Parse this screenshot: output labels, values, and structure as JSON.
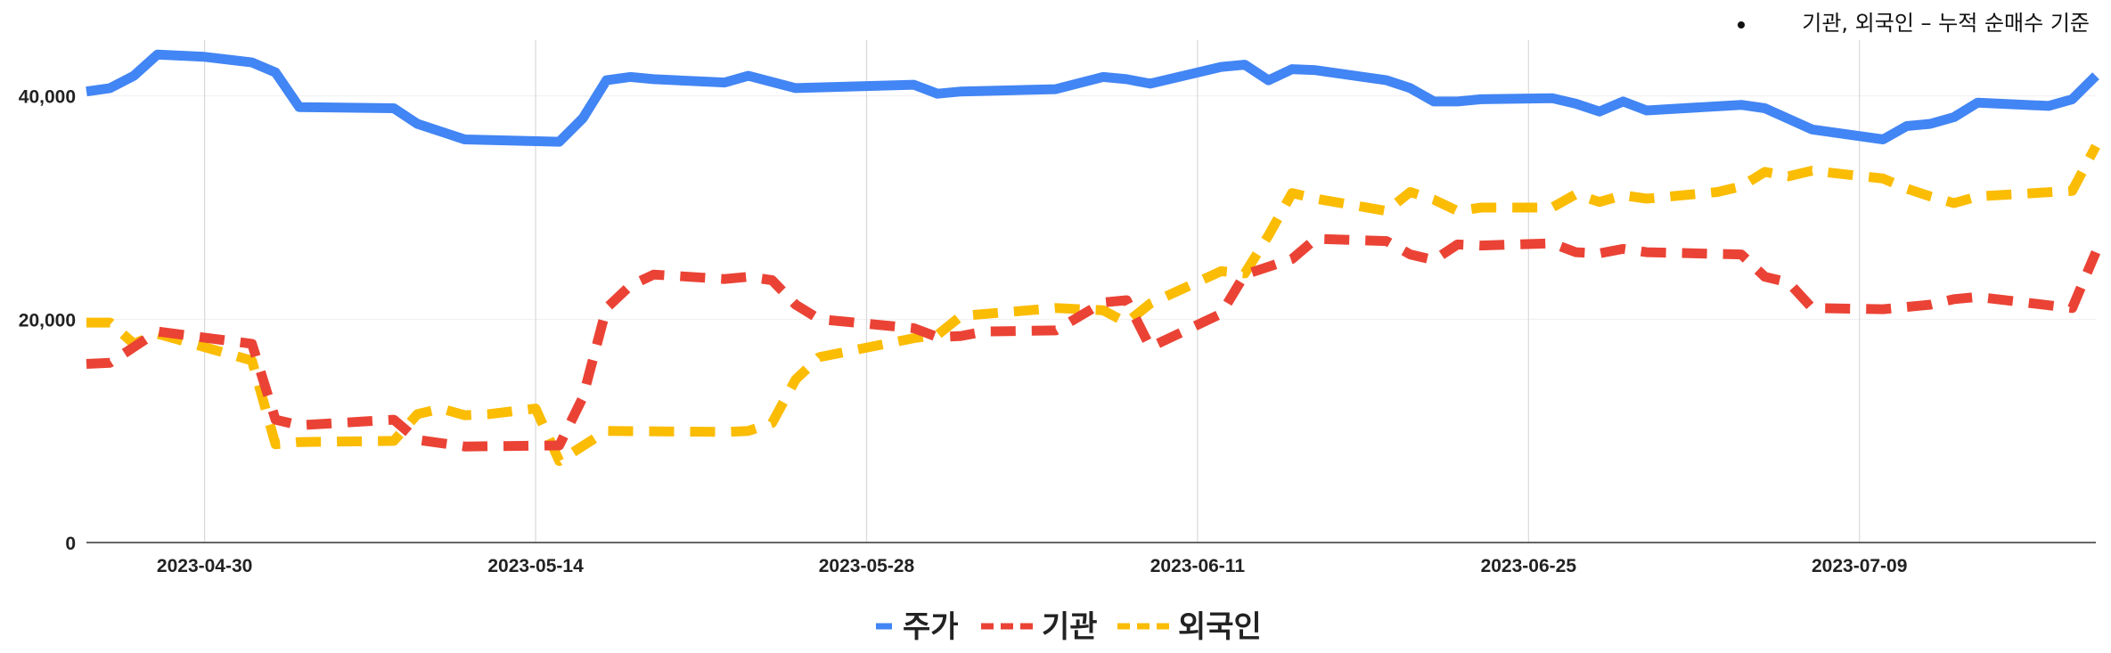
{
  "chart_data": {
    "type": "line",
    "title": "",
    "note": "기관, 외국인 – 누적 순매수 기준",
    "xlabel": "",
    "ylabel": "",
    "ylim": [
      0,
      45000
    ],
    "yticks": [
      0,
      20000,
      40000
    ],
    "ytick_labels": [
      "0",
      "20,000",
      "40,000"
    ],
    "xticks": [
      "2023-04-30",
      "2023-05-14",
      "2023-05-28",
      "2023-06-11",
      "2023-06-25",
      "2023-07-09"
    ],
    "x_start": "2023-04-25",
    "x_end": "2023-07-19",
    "grid": "vertical",
    "legend_position": "bottom",
    "series": [
      {
        "name": "주가",
        "color": "#4285F4",
        "style": "solid",
        "points": [
          [
            "2023-04-25",
            40400
          ],
          [
            "2023-04-26",
            40700
          ],
          [
            "2023-04-27",
            41800
          ],
          [
            "2023-04-28",
            43700
          ],
          [
            "2023-04-30",
            43500
          ],
          [
            "2023-05-02",
            43000
          ],
          [
            "2023-05-03",
            42100
          ],
          [
            "2023-05-04",
            39000
          ],
          [
            "2023-05-08",
            38900
          ],
          [
            "2023-05-09",
            37500
          ],
          [
            "2023-05-11",
            36100
          ],
          [
            "2023-05-15",
            35900
          ],
          [
            "2023-05-16",
            38000
          ],
          [
            "2023-05-17",
            41400
          ],
          [
            "2023-05-18",
            41700
          ],
          [
            "2023-05-19",
            41500
          ],
          [
            "2023-05-22",
            41200
          ],
          [
            "2023-05-23",
            41800
          ],
          [
            "2023-05-25",
            40700
          ],
          [
            "2023-05-30",
            41000
          ],
          [
            "2023-05-31",
            40200
          ],
          [
            "2023-06-01",
            40400
          ],
          [
            "2023-06-05",
            40600
          ],
          [
            "2023-06-07",
            41700
          ],
          [
            "2023-06-08",
            41500
          ],
          [
            "2023-06-09",
            41100
          ],
          [
            "2023-06-12",
            42600
          ],
          [
            "2023-06-13",
            42800
          ],
          [
            "2023-06-14",
            41400
          ],
          [
            "2023-06-15",
            42400
          ],
          [
            "2023-06-16",
            42300
          ],
          [
            "2023-06-19",
            41400
          ],
          [
            "2023-06-20",
            40700
          ],
          [
            "2023-06-21",
            39500
          ],
          [
            "2023-06-22",
            39500
          ],
          [
            "2023-06-23",
            39700
          ],
          [
            "2023-06-26",
            39800
          ],
          [
            "2023-06-27",
            39300
          ],
          [
            "2023-06-28",
            38600
          ],
          [
            "2023-06-29",
            39500
          ],
          [
            "2023-06-30",
            38700
          ],
          [
            "2023-07-04",
            39200
          ],
          [
            "2023-07-05",
            38900
          ],
          [
            "2023-07-07",
            37000
          ],
          [
            "2023-07-10",
            36100
          ],
          [
            "2023-07-11",
            37300
          ],
          [
            "2023-07-12",
            37500
          ],
          [
            "2023-07-13",
            38100
          ],
          [
            "2023-07-14",
            39400
          ],
          [
            "2023-07-17",
            39100
          ],
          [
            "2023-07-18",
            39700
          ],
          [
            "2023-07-19",
            41800
          ]
        ]
      },
      {
        "name": "기관",
        "color": "#EA4335",
        "style": "dashed",
        "points": [
          [
            "2023-04-25",
            16000
          ],
          [
            "2023-04-26",
            16100
          ],
          [
            "2023-04-27",
            17500
          ],
          [
            "2023-04-28",
            18900
          ],
          [
            "2023-05-02",
            17800
          ],
          [
            "2023-05-03",
            11000
          ],
          [
            "2023-05-04",
            10500
          ],
          [
            "2023-05-08",
            11000
          ],
          [
            "2023-05-09",
            9200
          ],
          [
            "2023-05-11",
            8600
          ],
          [
            "2023-05-15",
            8700
          ],
          [
            "2023-05-16",
            13000
          ],
          [
            "2023-05-17",
            21000
          ],
          [
            "2023-05-18",
            23000
          ],
          [
            "2023-05-19",
            24000
          ],
          [
            "2023-05-22",
            23600
          ],
          [
            "2023-05-23",
            23800
          ],
          [
            "2023-05-24",
            23500
          ],
          [
            "2023-05-25",
            21300
          ],
          [
            "2023-05-26",
            20000
          ],
          [
            "2023-05-30",
            19200
          ],
          [
            "2023-05-31",
            18400
          ],
          [
            "2023-06-01",
            18500
          ],
          [
            "2023-06-02",
            18900
          ],
          [
            "2023-06-05",
            19000
          ],
          [
            "2023-06-07",
            21500
          ],
          [
            "2023-06-08",
            21700
          ],
          [
            "2023-06-09",
            17500
          ],
          [
            "2023-06-12",
            20500
          ],
          [
            "2023-06-13",
            24000
          ],
          [
            "2023-06-15",
            25400
          ],
          [
            "2023-06-16",
            27200
          ],
          [
            "2023-06-19",
            27000
          ],
          [
            "2023-06-20",
            25800
          ],
          [
            "2023-06-21",
            25300
          ],
          [
            "2023-06-22",
            26700
          ],
          [
            "2023-06-23",
            26600
          ],
          [
            "2023-06-26",
            26800
          ],
          [
            "2023-06-27",
            26000
          ],
          [
            "2023-06-28",
            25900
          ],
          [
            "2023-06-29",
            26300
          ],
          [
            "2023-06-30",
            26000
          ],
          [
            "2023-07-04",
            25800
          ],
          [
            "2023-07-05",
            23800
          ],
          [
            "2023-07-06",
            23300
          ],
          [
            "2023-07-07",
            21000
          ],
          [
            "2023-07-10",
            20900
          ],
          [
            "2023-07-11",
            21100
          ],
          [
            "2023-07-12",
            21300
          ],
          [
            "2023-07-13",
            21800
          ],
          [
            "2023-07-14",
            22000
          ],
          [
            "2023-07-18",
            21000
          ],
          [
            "2023-07-19",
            26000
          ]
        ]
      },
      {
        "name": "외국인",
        "color": "#FBBC04",
        "style": "dashed",
        "points": [
          [
            "2023-04-25",
            19700
          ],
          [
            "2023-04-26",
            19700
          ],
          [
            "2023-04-27",
            17800
          ],
          [
            "2023-04-28",
            18700
          ],
          [
            "2023-05-02",
            16300
          ],
          [
            "2023-05-03",
            8800
          ],
          [
            "2023-05-04",
            9000
          ],
          [
            "2023-05-08",
            9100
          ],
          [
            "2023-05-09",
            11500
          ],
          [
            "2023-05-10",
            12000
          ],
          [
            "2023-05-11",
            11400
          ],
          [
            "2023-05-12",
            11500
          ],
          [
            "2023-05-14",
            12000
          ],
          [
            "2023-05-15",
            7300
          ],
          [
            "2023-05-17",
            10000
          ],
          [
            "2023-05-22",
            9900
          ],
          [
            "2023-05-23",
            10000
          ],
          [
            "2023-05-24",
            10700
          ],
          [
            "2023-05-25",
            14600
          ],
          [
            "2023-05-26",
            16600
          ],
          [
            "2023-05-30",
            18300
          ],
          [
            "2023-05-31",
            18600
          ],
          [
            "2023-06-01",
            20300
          ],
          [
            "2023-06-05",
            21000
          ],
          [
            "2023-06-07",
            20800
          ],
          [
            "2023-06-08",
            19700
          ],
          [
            "2023-06-09",
            21400
          ],
          [
            "2023-06-12",
            24300
          ],
          [
            "2023-06-13",
            24100
          ],
          [
            "2023-06-14",
            27500
          ],
          [
            "2023-06-15",
            31300
          ],
          [
            "2023-06-16",
            30800
          ],
          [
            "2023-06-19",
            29700
          ],
          [
            "2023-06-20",
            31400
          ],
          [
            "2023-06-21",
            30700
          ],
          [
            "2023-06-22",
            29700
          ],
          [
            "2023-06-23",
            30000
          ],
          [
            "2023-06-26",
            30000
          ],
          [
            "2023-06-27",
            31200
          ],
          [
            "2023-06-28",
            30500
          ],
          [
            "2023-06-29",
            31100
          ],
          [
            "2023-06-30",
            30800
          ],
          [
            "2023-07-03",
            31400
          ],
          [
            "2023-07-04",
            31900
          ],
          [
            "2023-07-05",
            33200
          ],
          [
            "2023-07-06",
            32800
          ],
          [
            "2023-07-07",
            33300
          ],
          [
            "2023-07-10",
            32600
          ],
          [
            "2023-07-11",
            31700
          ],
          [
            "2023-07-12",
            31000
          ],
          [
            "2023-07-13",
            30400
          ],
          [
            "2023-07-14",
            31000
          ],
          [
            "2023-07-18",
            31500
          ],
          [
            "2023-07-19",
            35500
          ]
        ]
      }
    ]
  }
}
